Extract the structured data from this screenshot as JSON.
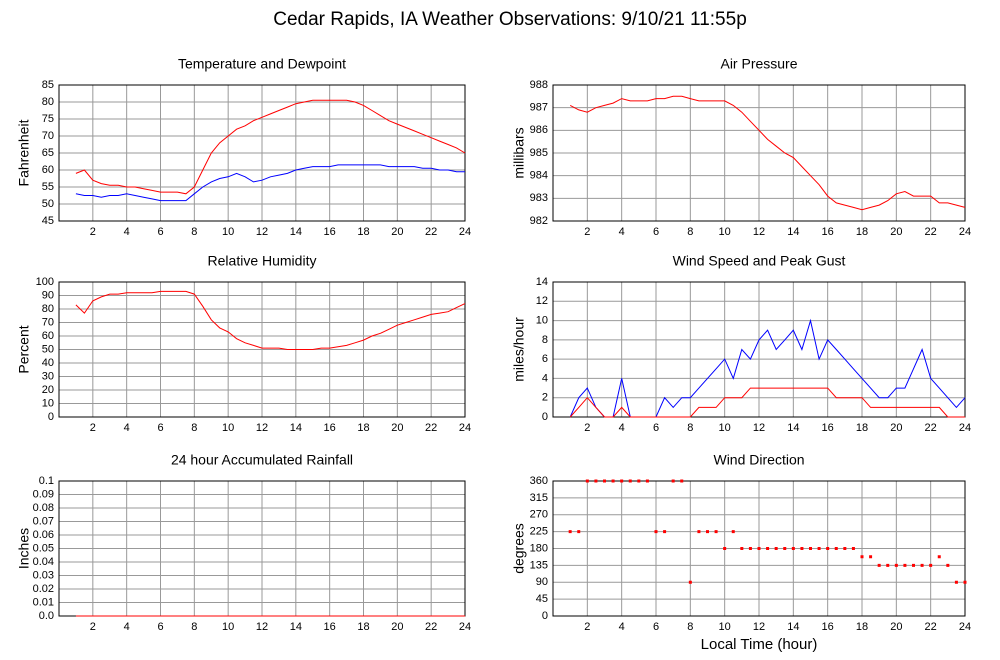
{
  "title": "Cedar Rapids, IA Weather Observations: 9/10/21 11:55p",
  "chart_data": [
    {
      "type": "line",
      "title": "Temperature and Dewpoint",
      "ylabel": "Fahrenheit",
      "x": [
        1,
        1.5,
        2,
        2.5,
        3,
        3.5,
        4,
        4.5,
        5,
        5.5,
        6,
        6.5,
        7,
        7.5,
        8,
        8.5,
        9,
        9.5,
        10,
        10.5,
        11,
        11.5,
        12,
        12.5,
        13,
        13.5,
        14,
        14.5,
        15,
        15.5,
        16,
        16.5,
        17,
        17.5,
        18,
        18.5,
        19,
        19.5,
        20,
        20.5,
        21,
        21.5,
        22,
        22.5,
        23,
        23.5,
        24
      ],
      "series": [
        {
          "color": "#ff0000",
          "values": [
            59,
            60,
            57,
            56,
            55.5,
            55.5,
            55,
            55,
            54.5,
            54,
            53.5,
            53.5,
            53.5,
            53,
            55,
            60,
            65,
            68,
            70,
            72,
            73,
            74.5,
            75.5,
            76.5,
            77.5,
            78.5,
            79.5,
            80,
            80.5,
            80.5,
            80.5,
            80.5,
            80.5,
            80,
            79,
            77.5,
            76,
            74.5,
            73.5,
            72.5,
            71.5,
            70.5,
            69.5,
            68.5,
            67.5,
            66.5,
            65
          ]
        },
        {
          "color": "#0000ff",
          "values": [
            53,
            52.5,
            52.5,
            52,
            52.5,
            52.5,
            53,
            52.5,
            52,
            51.5,
            51,
            51,
            51,
            51,
            53,
            55,
            56.5,
            57.5,
            58,
            59,
            58,
            56.5,
            57,
            58,
            58.5,
            59,
            60,
            60.5,
            61,
            61,
            61,
            61.5,
            61.5,
            61.5,
            61.5,
            61.5,
            61.5,
            61,
            61,
            61,
            61,
            60.5,
            60.5,
            60,
            60,
            59.5,
            59.5
          ]
        }
      ],
      "xlim": [
        0,
        24
      ],
      "xticks": [
        2,
        4,
        6,
        8,
        10,
        12,
        14,
        16,
        18,
        20,
        22,
        24
      ],
      "ylim": [
        45,
        85
      ],
      "yticks": [
        45,
        50,
        55,
        60,
        65,
        70,
        75,
        80,
        85
      ],
      "grid": true
    },
    {
      "type": "line",
      "title": "Air Pressure",
      "ylabel": "millibars",
      "x": [
        1,
        1.5,
        2,
        2.5,
        3,
        3.5,
        4,
        4.5,
        5,
        5.5,
        6,
        6.5,
        7,
        7.5,
        8,
        8.5,
        9,
        9.5,
        10,
        10.5,
        11,
        11.5,
        12,
        12.5,
        13,
        13.5,
        14,
        14.5,
        15,
        15.5,
        16,
        16.5,
        17,
        17.5,
        18,
        18.5,
        19,
        19.5,
        20,
        20.5,
        21,
        21.5,
        22,
        22.5,
        23,
        23.5,
        24
      ],
      "series": [
        {
          "color": "#ff0000",
          "values": [
            987.1,
            986.9,
            986.8,
            987,
            987.1,
            987.2,
            987.4,
            987.3,
            987.3,
            987.3,
            987.4,
            987.4,
            987.5,
            987.5,
            987.4,
            987.3,
            987.3,
            987.3,
            987.3,
            987.1,
            986.8,
            986.4,
            986,
            985.6,
            985.3,
            985,
            984.8,
            984.4,
            984,
            983.6,
            983.1,
            982.8,
            982.7,
            982.6,
            982.5,
            982.6,
            982.7,
            982.9,
            983.2,
            983.3,
            983.1,
            983.1,
            983.1,
            982.8,
            982.8,
            982.7,
            982.6
          ]
        }
      ],
      "xlim": [
        0,
        24
      ],
      "xticks": [
        2,
        4,
        6,
        8,
        10,
        12,
        14,
        16,
        18,
        20,
        22,
        24
      ],
      "ylim": [
        982,
        988
      ],
      "yticks": [
        982,
        983,
        984,
        985,
        986,
        987,
        988
      ],
      "grid": true
    },
    {
      "type": "line",
      "title": "Relative Humidity",
      "ylabel": "Percent",
      "x": [
        1,
        1.5,
        2,
        2.5,
        3,
        3.5,
        4,
        4.5,
        5,
        5.5,
        6,
        6.5,
        7,
        7.5,
        8,
        8.5,
        9,
        9.5,
        10,
        10.5,
        11,
        11.5,
        12,
        12.5,
        13,
        13.5,
        14,
        14.5,
        15,
        15.5,
        16,
        16.5,
        17,
        17.5,
        18,
        18.5,
        19,
        19.5,
        20,
        20.5,
        21,
        21.5,
        22,
        22.5,
        23,
        23.5,
        24
      ],
      "series": [
        {
          "color": "#ff0000",
          "values": [
            83,
            77,
            86,
            89,
            91,
            91,
            92,
            92,
            92,
            92,
            93,
            93,
            93,
            93,
            91,
            82,
            72,
            66,
            63,
            58,
            55,
            53,
            51,
            51,
            51,
            50,
            50,
            50,
            50,
            51,
            51,
            52,
            53,
            55,
            57,
            60,
            62,
            65,
            68,
            70,
            72,
            74,
            76,
            77,
            78,
            81,
            84
          ]
        }
      ],
      "xlim": [
        0,
        24
      ],
      "xticks": [
        2,
        4,
        6,
        8,
        10,
        12,
        14,
        16,
        18,
        20,
        22,
        24
      ],
      "ylim": [
        0,
        100
      ],
      "yticks": [
        0,
        10,
        20,
        30,
        40,
        50,
        60,
        70,
        80,
        90,
        100
      ],
      "grid": true
    },
    {
      "type": "line",
      "title": "Wind Speed and Peak Gust",
      "ylabel": "miles/hour",
      "x": [
        1,
        1.5,
        2,
        2.5,
        3,
        3.5,
        4,
        4.5,
        5,
        5.5,
        6,
        6.5,
        7,
        7.5,
        8,
        8.5,
        9,
        9.5,
        10,
        10.5,
        11,
        11.5,
        12,
        12.5,
        13,
        13.5,
        14,
        14.5,
        15,
        15.5,
        16,
        16.5,
        17,
        17.5,
        18,
        18.5,
        19,
        19.5,
        20,
        20.5,
        21,
        21.5,
        22,
        22.5,
        23,
        23.5,
        24
      ],
      "series": [
        {
          "color": "#0000ff",
          "values": [
            0,
            2,
            3,
            1,
            0,
            0,
            4,
            0,
            0,
            0,
            0,
            2,
            1,
            2,
            2,
            3,
            4,
            5,
            6,
            4,
            7,
            6,
            8,
            9,
            7,
            8,
            9,
            7,
            10,
            6,
            8,
            7,
            6,
            5,
            4,
            3,
            2,
            2,
            3,
            3,
            5,
            7,
            4,
            3,
            2,
            1,
            2
          ]
        },
        {
          "color": "#ff0000",
          "values": [
            0,
            1,
            2,
            1,
            0,
            0,
            1,
            0,
            0,
            0,
            0,
            0,
            0,
            0,
            0,
            1,
            1,
            1,
            2,
            2,
            2,
            3,
            3,
            3,
            3,
            3,
            3,
            3,
            3,
            3,
            3,
            2,
            2,
            2,
            2,
            1,
            1,
            1,
            1,
            1,
            1,
            1,
            1,
            1,
            0,
            0,
            0
          ]
        }
      ],
      "xlim": [
        0,
        24
      ],
      "xticks": [
        2,
        4,
        6,
        8,
        10,
        12,
        14,
        16,
        18,
        20,
        22,
        24
      ],
      "ylim": [
        0,
        14
      ],
      "yticks": [
        0,
        2,
        4,
        6,
        8,
        10,
        12,
        14
      ],
      "grid": true
    },
    {
      "type": "line",
      "title": "24 hour Accumulated Rainfall",
      "ylabel": "Inches",
      "x": [
        1,
        24
      ],
      "series": [
        {
          "color": "#ff0000",
          "values": [
            0,
            0
          ]
        }
      ],
      "xlim": [
        0,
        24
      ],
      "xticks": [
        2,
        4,
        6,
        8,
        10,
        12,
        14,
        16,
        18,
        20,
        22,
        24
      ],
      "ylim": [
        0,
        0.1
      ],
      "yticks": [
        {
          "value": 0,
          "label": "0.0"
        },
        0.01,
        0.02,
        0.03,
        0.04,
        0.05,
        0.06,
        0.07,
        0.08,
        0.09,
        0.1
      ],
      "grid": true
    },
    {
      "type": "scatter",
      "title": "Wind Direction",
      "ylabel": "degrees",
      "xlabel": "Local Time (hour)",
      "x": [
        1,
        1.5,
        2,
        2.5,
        3,
        3.5,
        4,
        4.5,
        5,
        5.5,
        6,
        6.5,
        7,
        7.5,
        8,
        8.5,
        9,
        9.5,
        10,
        10.5,
        11,
        11.5,
        12,
        12.5,
        13,
        13.5,
        14,
        14.5,
        15,
        15.5,
        16,
        16.5,
        17,
        17.5,
        18,
        18.5,
        19,
        19.5,
        20,
        20.5,
        21,
        21.5,
        22,
        22.5,
        23,
        23.5,
        24
      ],
      "series": [
        {
          "color": "#ff0000",
          "values": [
            225,
            225,
            360,
            360,
            360,
            360,
            360,
            360,
            360,
            360,
            225,
            225,
            360,
            360,
            90,
            225,
            225,
            225,
            180,
            225,
            180,
            180,
            180,
            180,
            180,
            180,
            180,
            180,
            180,
            180,
            180,
            180,
            180,
            180,
            158,
            158,
            135,
            135,
            135,
            135,
            135,
            135,
            135,
            158,
            135,
            90,
            90
          ]
        }
      ],
      "xlim": [
        0,
        24
      ],
      "xticks": [
        2,
        4,
        6,
        8,
        10,
        12,
        14,
        16,
        18,
        20,
        22,
        24
      ],
      "ylim": [
        0,
        360
      ],
      "yticks": [
        0,
        45,
        90,
        135,
        180,
        225,
        270,
        315,
        360
      ],
      "grid": true
    }
  ]
}
